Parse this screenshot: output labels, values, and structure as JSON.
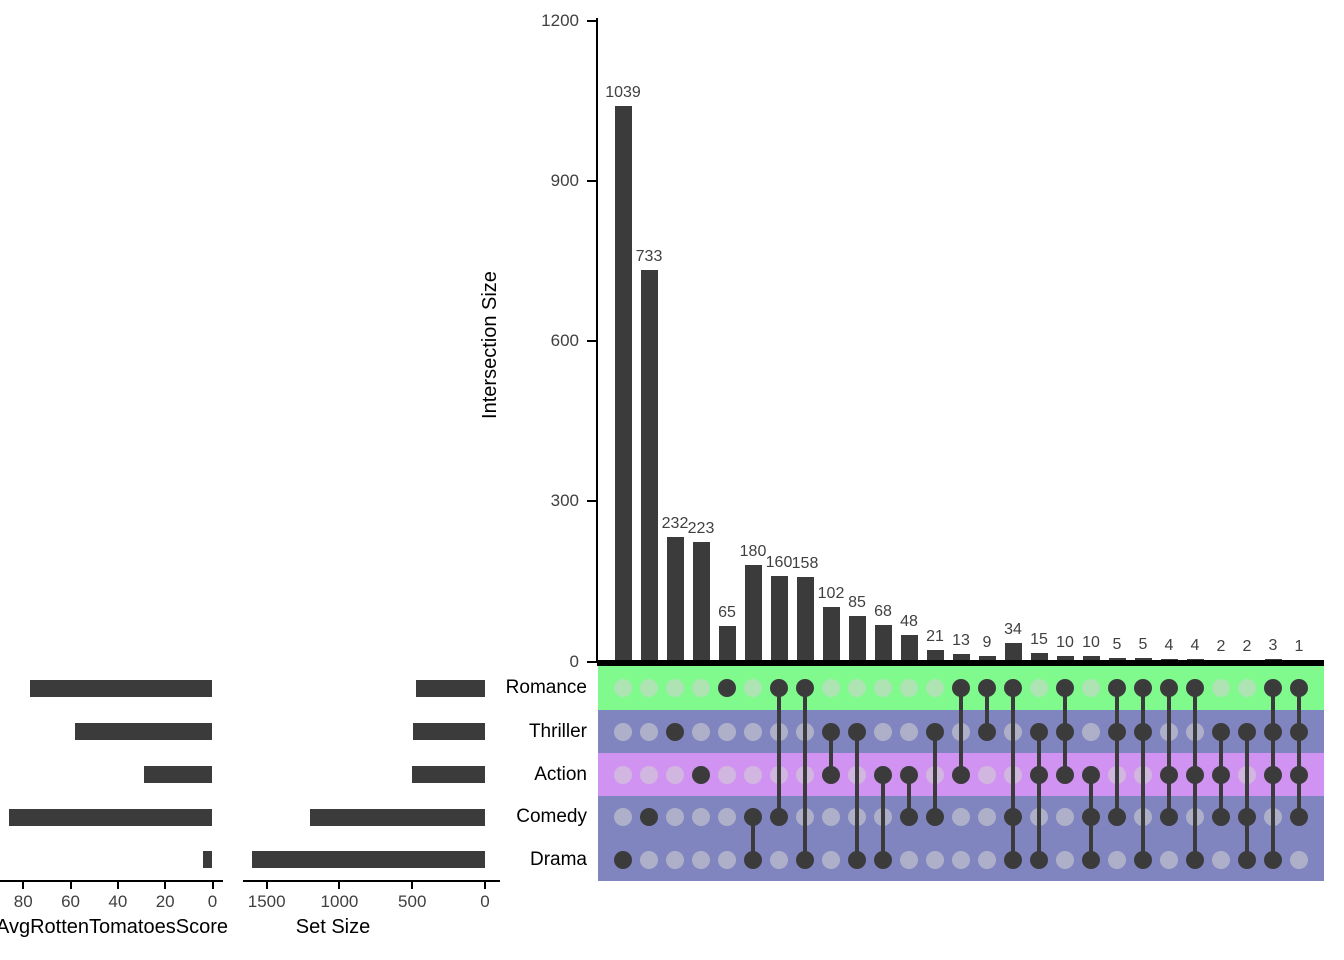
{
  "figure_type": "upset-plot",
  "colors": {
    "bar": "#3B3B3B",
    "axis_line": "#000000",
    "tick_text": "#404040",
    "label_text": "#000000",
    "band_romance": "#80FA8C",
    "band_thriller": "#8085C0",
    "band_action": "#D193F1",
    "band_comedy": "#8085C0",
    "band_drama": "#8085C0",
    "dot_filled": "#3B3B3B",
    "dot_empty": "rgba(210,210,210,0.57)",
    "connector": "#3B3B3B"
  },
  "matrix": {
    "rows": [
      "Romance",
      "Thriller",
      "Action",
      "Comedy",
      "Drama"
    ],
    "row_band_colors": [
      "#80FA8C",
      "#8085C0",
      "#D193F1",
      "#8085C0",
      "#8085C0"
    ]
  },
  "chart_data": [
    {
      "id": "intersection_size",
      "type": "bar",
      "title": "",
      "ylabel": "Intersection Size",
      "ylim": [
        0,
        1200
      ],
      "yticks": [
        0,
        300,
        600,
        900,
        1200
      ],
      "grid": false,
      "bar_labels_shown": true,
      "categories": [
        "Drama",
        "Comedy",
        "Thriller",
        "Action",
        "Romance",
        "Comedy&Drama",
        "Romance&Comedy",
        "Romance&Drama",
        "Thriller&Action",
        "Thriller&Drama",
        "Action&Drama",
        "Action&Comedy",
        "Thriller&Comedy",
        "Romance&Action",
        "Romance&Thriller",
        "Romance&Comedy&Drama",
        "Thriller&Action&Drama",
        "Romance&Thriller&Action",
        "Action&Comedy&Drama",
        "Romance&Thriller&Comedy",
        "Romance&Thriller&Drama",
        "Romance&Action&Comedy",
        "Romance&Action&Drama",
        "Thriller&Action&Comedy",
        "Thriller&Comedy&Drama",
        "Romance&Thriller&Action&Drama",
        "Romance&Thriller&Action&Comedy"
      ],
      "values": [
        1039,
        733,
        232,
        223,
        65,
        180,
        160,
        158,
        102,
        85,
        68,
        48,
        21,
        13,
        9,
        34,
        15,
        10,
        10,
        5,
        5,
        4,
        4,
        2,
        2,
        3,
        1
      ],
      "combos": [
        [
          "Drama"
        ],
        [
          "Comedy"
        ],
        [
          "Thriller"
        ],
        [
          "Action"
        ],
        [
          "Romance"
        ],
        [
          "Comedy",
          "Drama"
        ],
        [
          "Romance",
          "Comedy"
        ],
        [
          "Romance",
          "Drama"
        ],
        [
          "Thriller",
          "Action"
        ],
        [
          "Thriller",
          "Drama"
        ],
        [
          "Action",
          "Drama"
        ],
        [
          "Action",
          "Comedy"
        ],
        [
          "Thriller",
          "Comedy"
        ],
        [
          "Romance",
          "Action"
        ],
        [
          "Romance",
          "Thriller"
        ],
        [
          "Romance",
          "Comedy",
          "Drama"
        ],
        [
          "Thriller",
          "Action",
          "Drama"
        ],
        [
          "Romance",
          "Thriller",
          "Action"
        ],
        [
          "Action",
          "Comedy",
          "Drama"
        ],
        [
          "Romance",
          "Thriller",
          "Comedy"
        ],
        [
          "Romance",
          "Thriller",
          "Drama"
        ],
        [
          "Romance",
          "Action",
          "Comedy"
        ],
        [
          "Romance",
          "Action",
          "Drama"
        ],
        [
          "Thriller",
          "Action",
          "Comedy"
        ],
        [
          "Thriller",
          "Comedy",
          "Drama"
        ],
        [
          "Romance",
          "Thriller",
          "Action",
          "Drama"
        ],
        [
          "Romance",
          "Thriller",
          "Action",
          "Comedy"
        ]
      ]
    },
    {
      "id": "set_size",
      "type": "bar",
      "orientation": "horizontal-left",
      "xlabel": "Set Size",
      "xticks": [
        1500,
        1000,
        500,
        0
      ],
      "categories": [
        "Romance",
        "Thriller",
        "Action",
        "Comedy",
        "Drama"
      ],
      "values": [
        471,
        492,
        503,
        1200,
        1603
      ]
    },
    {
      "id": "avg_rotten_tomatoes_score",
      "type": "bar",
      "orientation": "horizontal-left",
      "xlabel": "AvgRottenTomatoesScore",
      "xticks": [
        80,
        60,
        40,
        20,
        0
      ],
      "categories": [
        "Romance",
        "Thriller",
        "Action",
        "Comedy",
        "Drama"
      ],
      "values": [
        77,
        58,
        29,
        86,
        4
      ]
    }
  ]
}
